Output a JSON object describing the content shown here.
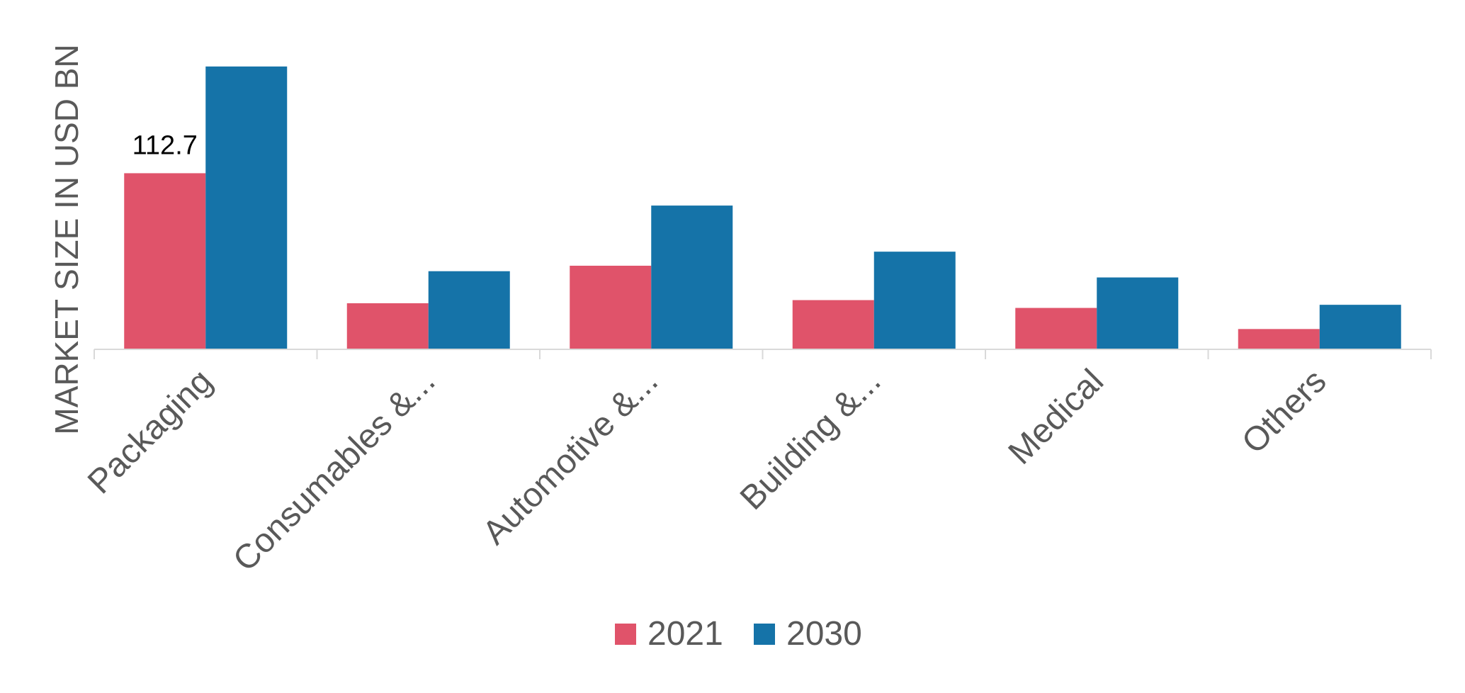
{
  "chart_data": {
    "type": "bar",
    "title": "",
    "xlabel": "",
    "ylabel": "MARKET SIZE IN USD BN",
    "categories": [
      "Packaging",
      "Consumables &...",
      "Automotive &...",
      "Building &...",
      "Medical",
      "Others"
    ],
    "series": [
      {
        "name": "2021",
        "color": "#E0536A",
        "values": [
          112.7,
          29.5,
          53.5,
          31.5,
          26.5,
          13.0
        ]
      },
      {
        "name": "2030",
        "color": "#1573A8",
        "values": [
          181.0,
          50.0,
          92.0,
          62.5,
          46.0,
          28.5
        ]
      }
    ],
    "data_labels": [
      {
        "series": 0,
        "category": 0,
        "text": "112.7"
      }
    ],
    "ylim": [
      0,
      185
    ],
    "grid": false,
    "legend": "bottom-center",
    "axis_color": "#D9D9D9",
    "text_color": "#595959"
  }
}
